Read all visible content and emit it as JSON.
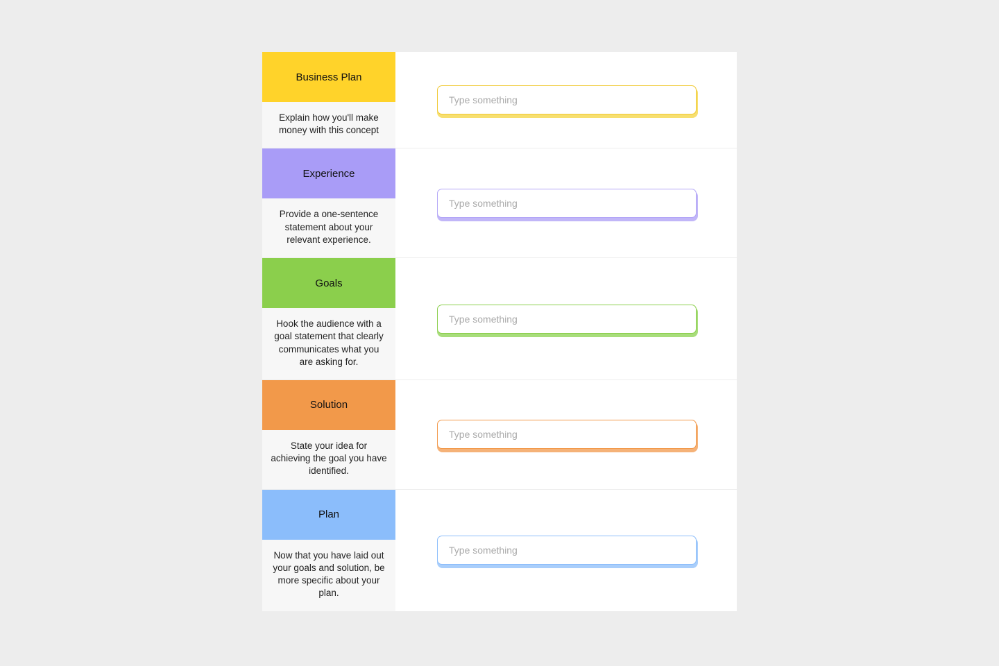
{
  "page_background": "#ededed",
  "form_background": "#ffffff",
  "desc_background": "#f7f7f7",
  "row_border_color": "#eeeeee",
  "placeholder_color": "#a9a9a9",
  "sections": [
    {
      "id": "business-plan",
      "title": "Business Plan",
      "description": "Explain how you'll make money with this concept",
      "title_color": "#ffd32a",
      "input_border_color": "#f0c933",
      "input_shadow_color": "#f7df6f",
      "placeholder": "Type something",
      "value": ""
    },
    {
      "id": "experience",
      "title": "Experience",
      "description": "Provide a one-sentence statement about your relevant experience.",
      "title_color": "#a99cf7",
      "input_border_color": "#b3a6f7",
      "input_shadow_color": "#c1b6f8",
      "placeholder": "Type something",
      "value": ""
    },
    {
      "id": "goals",
      "title": "Goals",
      "description": "Hook the audience with a goal statement that clearly communicates what you are asking for.",
      "title_color": "#8bcf4c",
      "input_border_color": "#8bcf4c",
      "input_shadow_color": "#a8dd7b",
      "placeholder": "Type something",
      "value": ""
    },
    {
      "id": "solution",
      "title": "Solution",
      "description": "State your idea for achieving the goal you have identified.",
      "title_color": "#f2994a",
      "input_border_color": "#f2994a",
      "input_shadow_color": "#f5b278",
      "placeholder": "Type something",
      "value": ""
    },
    {
      "id": "plan",
      "title": "Plan",
      "description": "Now that you have laid out your goals and solution, be more specific about your plan.",
      "title_color": "#8bbdfb",
      "input_border_color": "#8bbdfb",
      "input_shadow_color": "#a9cefb",
      "placeholder": "Type something",
      "value": ""
    }
  ]
}
